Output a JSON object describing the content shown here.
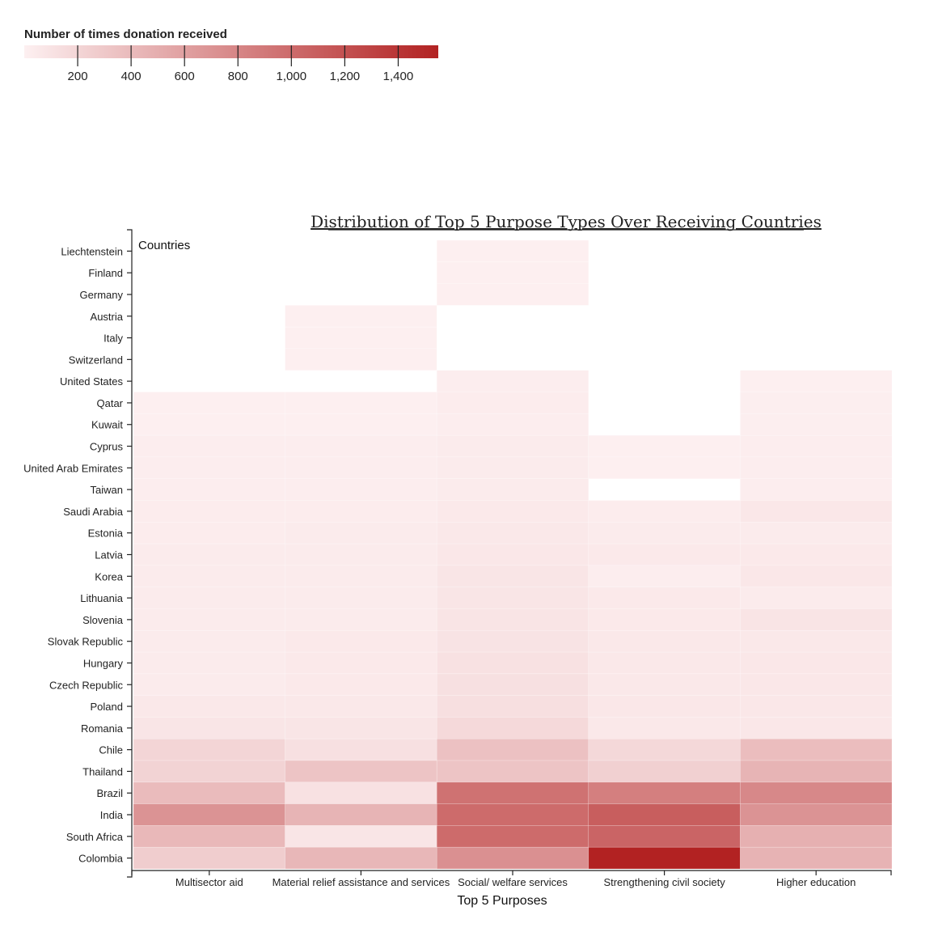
{
  "chart_data": {
    "type": "heatmap",
    "title": "Distribution of Top 5 Purpose Types Over Receiving Countries",
    "xlabel": "Top 5 Purposes",
    "ylabel": "Countries",
    "legend": {
      "title": "Number of times donation received",
      "min": 0,
      "max": 1550,
      "ticks": [
        200,
        400,
        600,
        800,
        1000,
        1200,
        1400
      ],
      "tick_labels": [
        "200",
        "400",
        "600",
        "800",
        "1,000",
        "1,200",
        "1,400"
      ],
      "color_low": "#fdf0f1",
      "color_high": "#b22222",
      "placement": "top-left"
    },
    "x_categories": [
      "Multisector aid",
      "Material relief assistance and services",
      "Social/ welfare services",
      "Strengthening civil society",
      "Higher education"
    ],
    "y_categories": [
      "Liechtenstein",
      "Finland",
      "Germany",
      "Austria",
      "Italy",
      "Switzerland",
      "United States",
      "Qatar",
      "Kuwait",
      "Cyprus",
      "United Arab Emirates",
      "Taiwan",
      "Saudi Arabia",
      "Estonia",
      "Latvia",
      "Korea",
      "Lithuania",
      "Slovenia",
      "Slovak Republic",
      "Hungary",
      "Czech Republic",
      "Poland",
      "Romania",
      "Chile",
      "Thailand",
      "Brazil",
      "India",
      "South Africa",
      "Colombia"
    ],
    "values": [
      [
        null,
        null,
        5,
        null,
        null
      ],
      [
        null,
        null,
        5,
        null,
        null
      ],
      [
        null,
        null,
        5,
        null,
        null
      ],
      [
        null,
        5,
        null,
        null,
        null
      ],
      [
        null,
        5,
        null,
        null,
        null
      ],
      [
        null,
        5,
        null,
        null,
        null
      ],
      [
        null,
        null,
        20,
        null,
        10
      ],
      [
        10,
        10,
        30,
        null,
        15
      ],
      [
        10,
        10,
        25,
        null,
        15
      ],
      [
        20,
        25,
        40,
        10,
        25
      ],
      [
        20,
        20,
        40,
        10,
        20
      ],
      [
        20,
        20,
        40,
        null,
        20
      ],
      [
        30,
        30,
        50,
        30,
        70
      ],
      [
        30,
        35,
        60,
        40,
        40
      ],
      [
        40,
        40,
        70,
        50,
        50
      ],
      [
        40,
        40,
        80,
        20,
        70
      ],
      [
        40,
        40,
        80,
        50,
        40
      ],
      [
        40,
        40,
        90,
        50,
        90
      ],
      [
        40,
        50,
        100,
        60,
        60
      ],
      [
        40,
        50,
        110,
        60,
        70
      ],
      [
        40,
        50,
        120,
        60,
        70
      ],
      [
        60,
        60,
        130,
        70,
        70
      ],
      [
        80,
        80,
        170,
        60,
        70
      ],
      [
        200,
        120,
        350,
        180,
        380
      ],
      [
        220,
        330,
        330,
        240,
        450
      ],
      [
        400,
        110,
        950,
        850,
        780
      ],
      [
        700,
        450,
        1000,
        1100,
        700
      ],
      [
        420,
        80,
        1000,
        1050,
        480
      ],
      [
        260,
        430,
        720,
        1550,
        460
      ]
    ]
  }
}
